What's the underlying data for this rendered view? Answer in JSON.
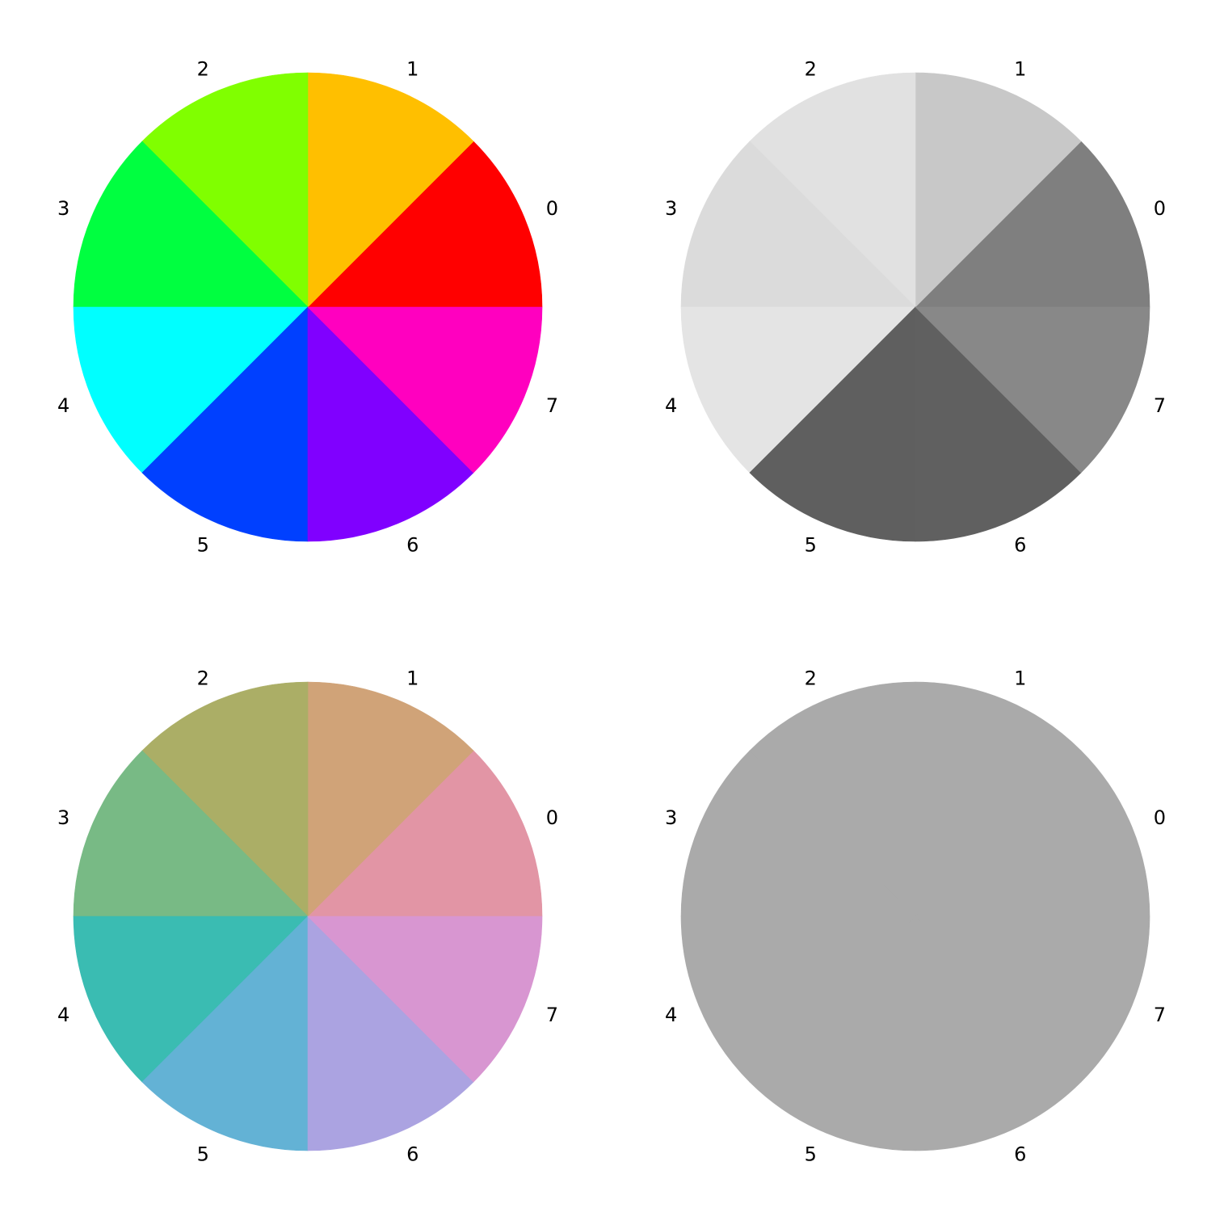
{
  "chart_data": [
    {
      "type": "pie",
      "labels": [
        "0",
        "1",
        "2",
        "3",
        "4",
        "5",
        "6",
        "7"
      ],
      "values": [
        1,
        1,
        1,
        1,
        1,
        1,
        1,
        1
      ],
      "colors": [
        "#ff0000",
        "#ffbf00",
        "#80ff00",
        "#00ff40",
        "#00ffff",
        "#0040ff",
        "#8000ff",
        "#ff00bf"
      ]
    },
    {
      "type": "pie",
      "labels": [
        "0",
        "1",
        "2",
        "3",
        "4",
        "5",
        "6",
        "7"
      ],
      "values": [
        1,
        1,
        1,
        1,
        1,
        1,
        1,
        1
      ],
      "colors": [
        "#7f7f7f",
        "#c8c8c8",
        "#e1e1e1",
        "#dbdbdb",
        "#e4e4e4",
        "#5f5f5f",
        "#606060",
        "#888888"
      ]
    },
    {
      "type": "pie",
      "labels": [
        "0",
        "1",
        "2",
        "3",
        "4",
        "5",
        "6",
        "7"
      ],
      "values": [
        1,
        1,
        1,
        1,
        1,
        1,
        1,
        1
      ],
      "colors": [
        "#e295a5",
        "#d0a378",
        "#abae66",
        "#78ba85",
        "#3abcb2",
        "#63b2d5",
        "#aba3e1",
        "#d896d1"
      ]
    },
    {
      "type": "pie",
      "labels": [
        "0",
        "1",
        "2",
        "3",
        "4",
        "5",
        "6",
        "7"
      ],
      "values": [
        1,
        1,
        1,
        1,
        1,
        1,
        1,
        1
      ],
      "colors": [
        "#aaaaaa",
        "#aaaaaa",
        "#aaaaaa",
        "#aaaaaa",
        "#aaaaaa",
        "#aaaaaa",
        "#aaaaaa",
        "#aaaaaa"
      ]
    }
  ]
}
